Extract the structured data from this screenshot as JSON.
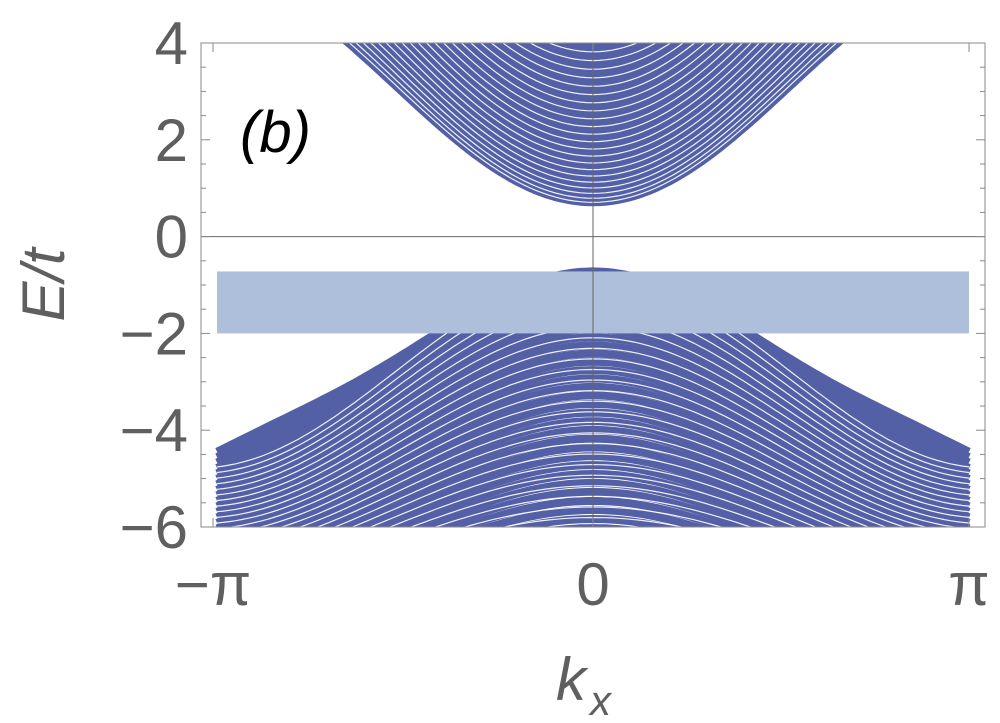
{
  "chart_data": {
    "type": "line",
    "panel_label": "(b)",
    "xlabel_main": "k",
    "xlabel_sub": "x",
    "ylabel": "E/t",
    "xlim": [
      -3.14159,
      3.14159
    ],
    "ylim": [
      -6,
      4
    ],
    "x_ticks": [
      {
        "value": -3.14159,
        "label": "−π"
      },
      {
        "value": 0,
        "label": "0"
      },
      {
        "value": 3.14159,
        "label": "π"
      }
    ],
    "y_ticks": [
      {
        "value": 4,
        "label": "4"
      },
      {
        "value": 2,
        "label": "2"
      },
      {
        "value": 0,
        "label": "0"
      },
      {
        "value": -2,
        "label": "−2"
      },
      {
        "value": -4,
        "label": "−4"
      },
      {
        "value": -6,
        "label": "−6"
      }
    ],
    "band_color": "#5360a6",
    "highlight_color": "#aebfdb",
    "highlight_band": {
      "x": [
        -3.0,
        3.0
      ],
      "y": [
        -2.0,
        -0.72
      ]
    },
    "upper_bands": {
      "description": "conduction subbands, minimum at k=0",
      "count": 34,
      "min_at_zero": [
        0.72,
        3.95
      ],
      "curvature": 1.5
    },
    "lower_bands": {
      "description": "valence subbands, maximum at k=0",
      "count": 34,
      "max_at_zero": [
        -0.72,
        -6.4
      ],
      "edge_value_top": -4.72,
      "edge_spacing": 0.11
    }
  }
}
